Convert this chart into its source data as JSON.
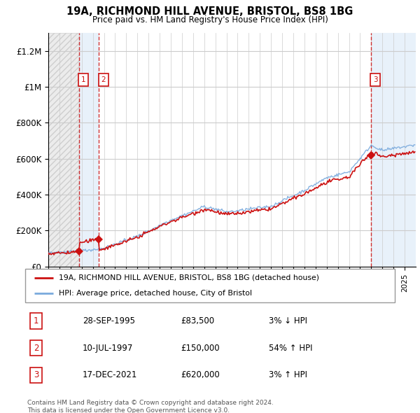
{
  "title": "19A, RICHMOND HILL AVENUE, BRISTOL, BS8 1BG",
  "subtitle": "Price paid vs. HM Land Registry's House Price Index (HPI)",
  "ylim": [
    0,
    1300000
  ],
  "yticks": [
    0,
    200000,
    400000,
    600000,
    800000,
    1000000,
    1200000
  ],
  "ytick_labels": [
    "£0",
    "£200K",
    "£400K",
    "£600K",
    "£800K",
    "£1M",
    "£1.2M"
  ],
  "xlim_start": 1993.0,
  "xlim_end": 2026.0,
  "transactions": [
    {
      "year": 1995.75,
      "price": 83500,
      "label": "1",
      "date": "28-SEP-1995",
      "pct": "3%",
      "dir": "↓"
    },
    {
      "year": 1997.54,
      "price": 150000,
      "label": "2",
      "date": "10-JUL-1997",
      "pct": "54%",
      "dir": "↑"
    },
    {
      "year": 2021.96,
      "price": 620000,
      "label": "3",
      "date": "17-DEC-2021",
      "pct": "3%",
      "dir": "↑"
    }
  ],
  "hpi_color": "#7aaadd",
  "price_color": "#cc1111",
  "background_color": "#ffffff",
  "grid_color": "#cccccc",
  "legend_line1": "19A, RICHMOND HILL AVENUE, BRISTOL, BS8 1BG (detached house)",
  "legend_line2": "HPI: Average price, detached house, City of Bristol",
  "copyright_text": "Contains HM Land Registry data © Crown copyright and database right 2024.\nThis data is licensed under the Open Government Licence v3.0.",
  "table_rows": [
    [
      "1",
      "28-SEP-1995",
      "£83,500",
      "3% ↓ HPI"
    ],
    [
      "2",
      "10-JUL-1997",
      "£150,000",
      "54% ↑ HPI"
    ],
    [
      "3",
      "17-DEC-2021",
      "£620,000",
      "3% ↑ HPI"
    ]
  ]
}
